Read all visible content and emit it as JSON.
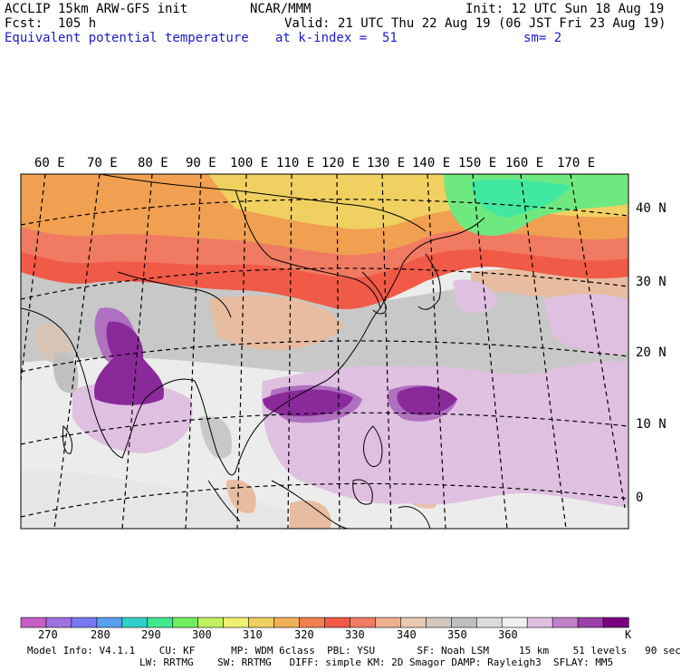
{
  "header": {
    "model": "ACCLIP 15km ARW-GFS init",
    "center": "NCAR/MMM",
    "init": "Init: 12 UTC Sun 18 Aug 19",
    "fcst": "Fcst:  105 h",
    "valid": "Valid: 21 UTC Thu 22 Aug 19 (06 JST Fri 23 Aug 19)",
    "field": "Equivalent potential temperature",
    "level": "at k-index =  51",
    "smooth": "sm= 2"
  },
  "map": {
    "lon_labels": [
      "60 E",
      "70 E",
      "80 E",
      "90 E",
      "100 E",
      "110 E",
      "120 E",
      "130 E",
      "140 E",
      "150 E",
      "160 E",
      "170 E"
    ],
    "lat_labels": [
      "40 N",
      "30 N",
      "20 N",
      "10 N",
      "0"
    ]
  },
  "colorbar": {
    "colors": [
      "#c85ec8",
      "#a070e0",
      "#7878f0",
      "#5a9ef0",
      "#30d0c8",
      "#40e890",
      "#70f060",
      "#c0f060",
      "#f0f070",
      "#f0d060",
      "#f0b058",
      "#f08050",
      "#f05a46",
      "#f07a62",
      "#f0b090",
      "#e8c8b0",
      "#d2c8c0",
      "#c0c0c0",
      "#dcdcdc",
      "#f0f0f0",
      "#e0c0e0",
      "#c080c8",
      "#9a40a8",
      "#780080"
    ],
    "labels": [
      "270",
      "280",
      "290",
      "300",
      "310",
      "320",
      "330",
      "340",
      "350",
      "360"
    ],
    "unit": "K"
  },
  "footer": {
    "line1": "Model Info: V4.1.1    CU: KF      MP: WDM 6class  PBL: YSU       SF: Noah LSM     15 km    51 levels   90 sec",
    "line2": "LW: RRTMG    SW: RRTMG   DIFF: simple KM: 2D Smagor DAMP: Rayleigh3  SFLAY: MM5"
  }
}
